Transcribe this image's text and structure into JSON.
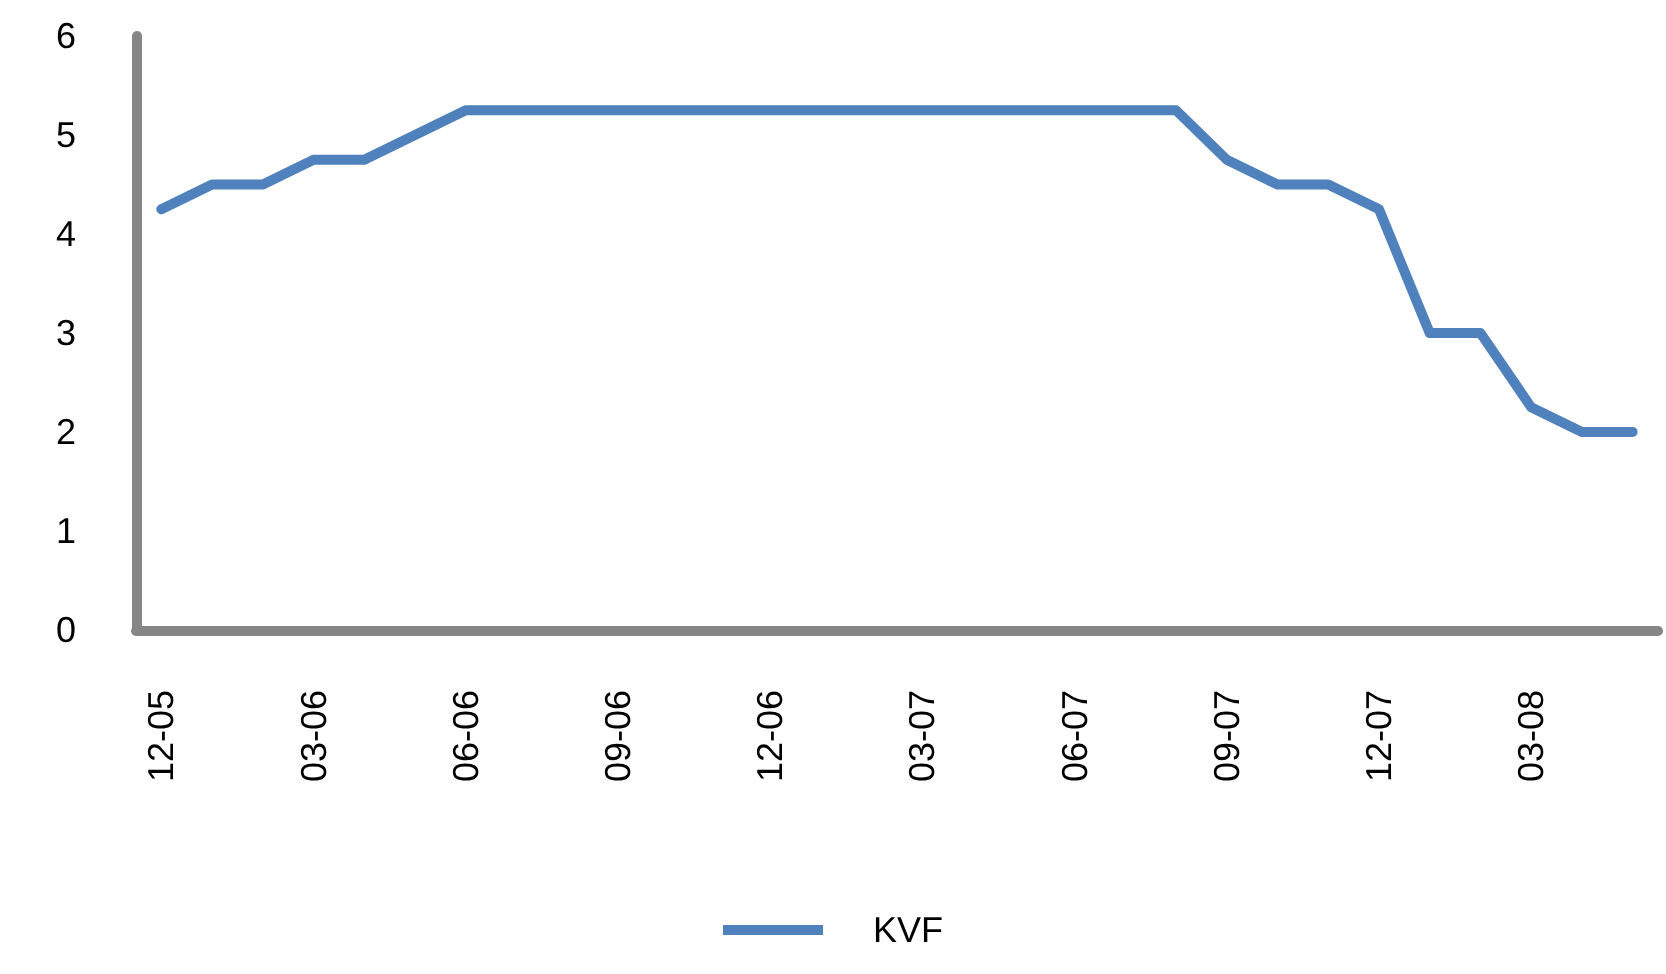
{
  "chart_data": {
    "type": "line",
    "categories": [
      "12-05",
      null,
      null,
      "03-06",
      null,
      null,
      "06-06",
      null,
      null,
      "09-06",
      null,
      null,
      "12-06",
      null,
      null,
      "03-07",
      null,
      null,
      "06-07",
      null,
      null,
      "09-07",
      null,
      null,
      "12-07",
      null,
      null,
      "03-08",
      null,
      null
    ],
    "series": [
      {
        "name": "KVF",
        "color": "#4f81bd",
        "values": [
          4.25,
          4.5,
          4.5,
          4.75,
          4.75,
          5.0,
          5.25,
          5.25,
          5.25,
          5.25,
          5.25,
          5.25,
          5.25,
          5.25,
          5.25,
          5.25,
          5.25,
          5.25,
          5.25,
          5.25,
          5.25,
          4.75,
          4.5,
          4.5,
          4.25,
          3.0,
          3.0,
          2.25,
          2.0,
          2.0
        ]
      }
    ],
    "ylim": [
      0,
      6
    ],
    "yticks": [
      0,
      1,
      2,
      3,
      4,
      5,
      6
    ],
    "grid": false,
    "legend": "bottom",
    "marker": "none",
    "line_style": "solid"
  }
}
